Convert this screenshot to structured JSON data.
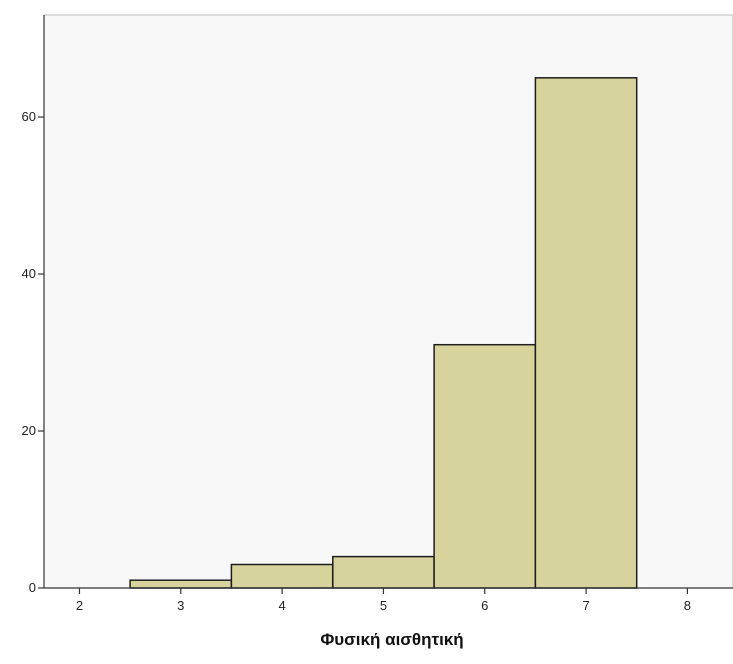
{
  "chart_data": {
    "type": "bar",
    "title": "",
    "xlabel": "Φυσική αισθητική",
    "ylabel": "",
    "categories": [
      "3",
      "4",
      "5",
      "6",
      "7"
    ],
    "x": [
      3,
      4,
      5,
      6,
      7
    ],
    "values": [
      1,
      3,
      4,
      31,
      65
    ],
    "xlim": [
      1.65,
      8.45
    ],
    "ylim": [
      0,
      73
    ],
    "xticks": [
      "2",
      "3",
      "4",
      "5",
      "6",
      "7",
      "8"
    ],
    "yticks": [
      "0",
      "20",
      "40",
      "60"
    ],
    "grid": false,
    "legend": "none",
    "colors": {
      "plot_background": "#f8f8f8",
      "bar_fill": "#d6d39c",
      "bar_stroke": "#1e1e1e",
      "axis": "#333333"
    }
  }
}
